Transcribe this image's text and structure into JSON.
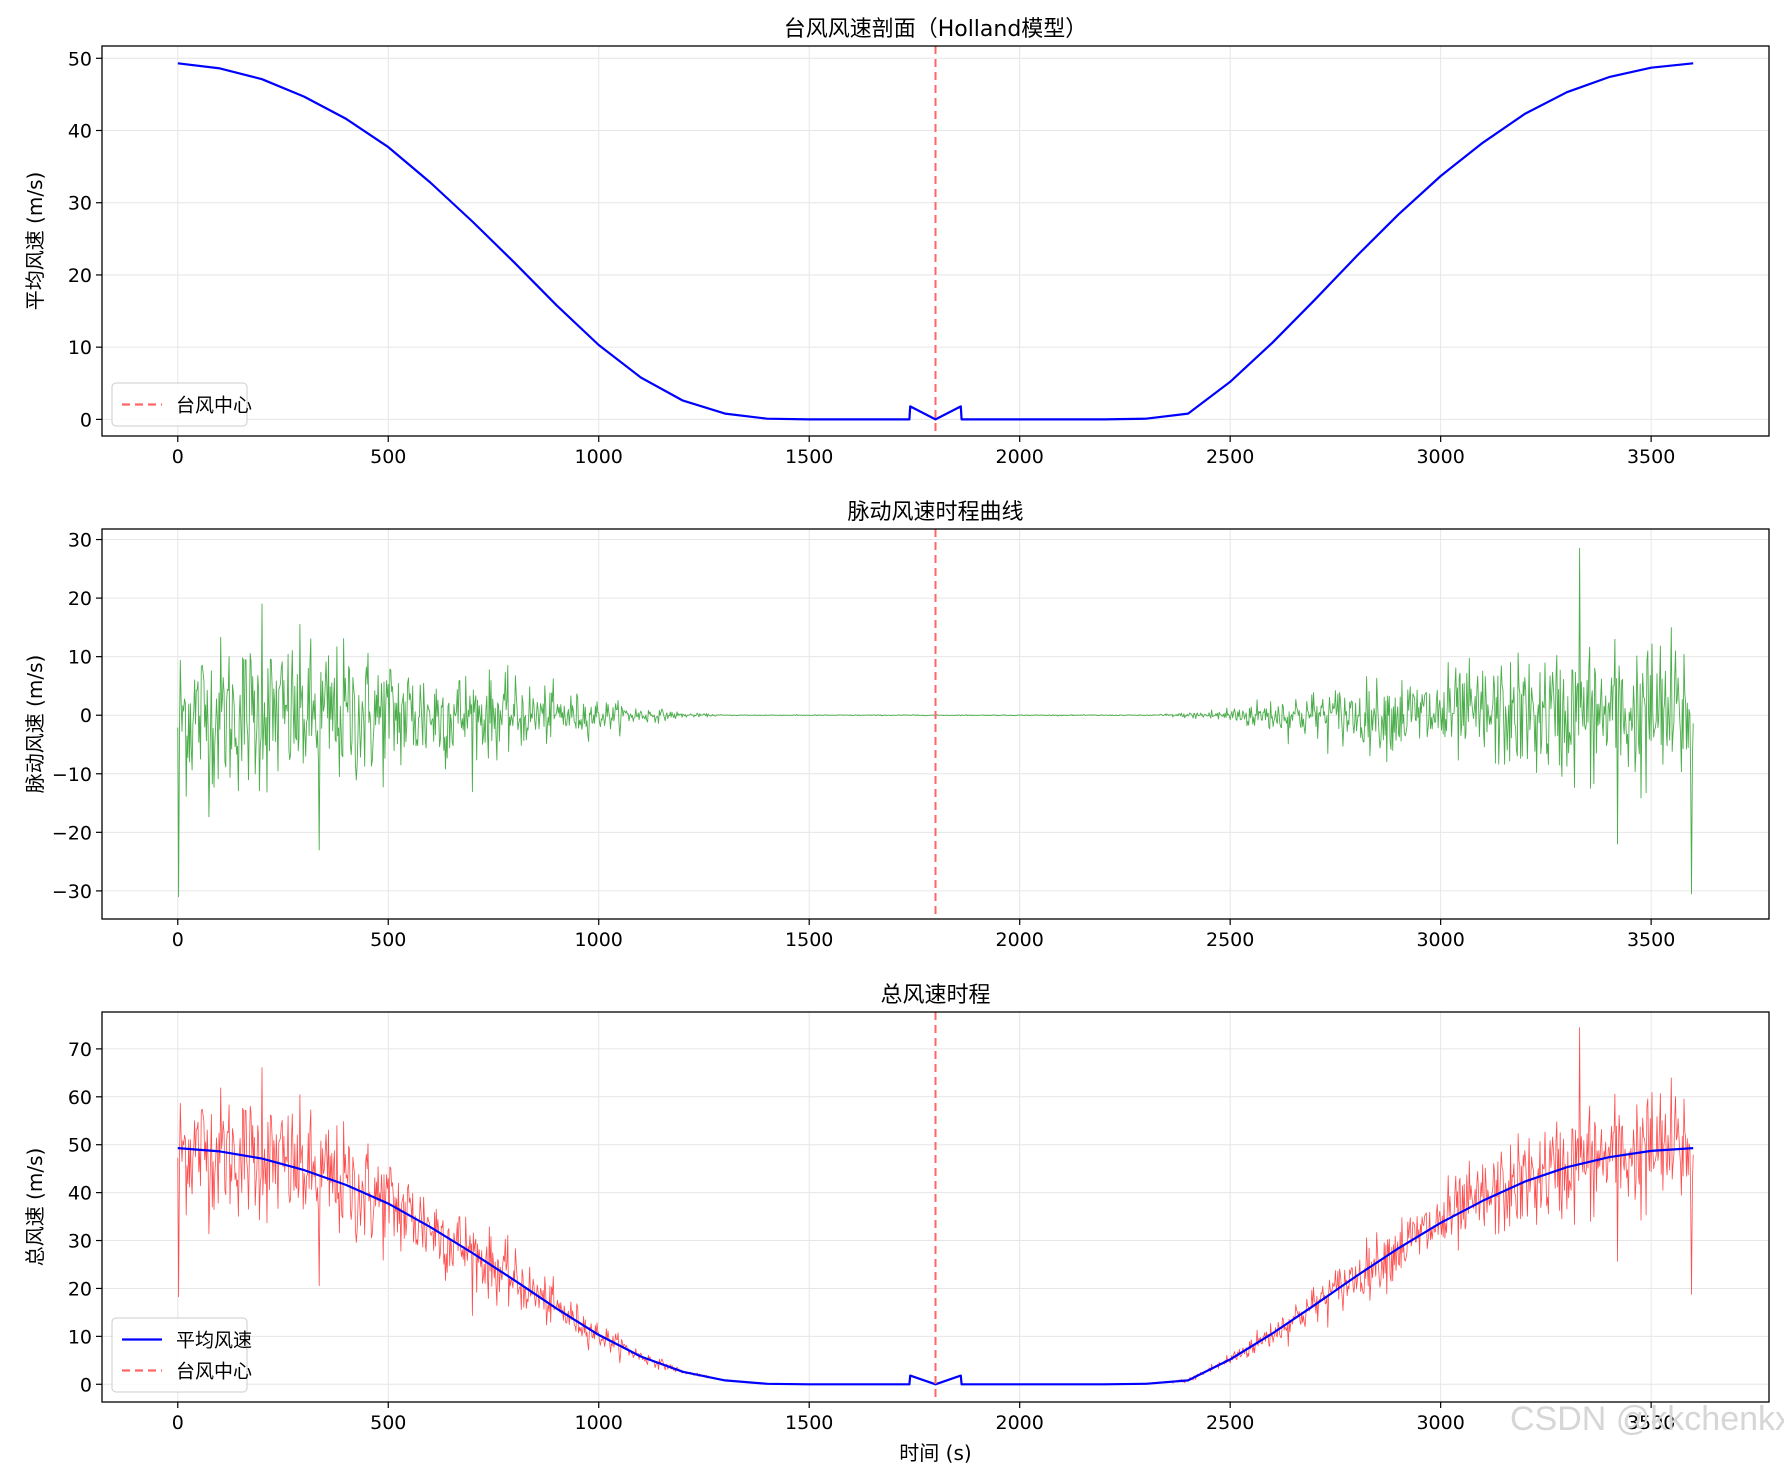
{
  "watermark": "CSDN @kkchenkx",
  "colors": {
    "smooth_line": "#0000ff",
    "noise_line": "#2ca02c",
    "noisy_line": "#ff0000",
    "center_line": "#ff6666",
    "grid": "#e6e6e6",
    "axes": "#000000"
  },
  "chart_data": [
    {
      "type": "line",
      "title": "台风风速剖面（Holland模型）",
      "xlabel": "",
      "ylabel": "平均风速 (m/s)",
      "xlim": [
        -180,
        3780
      ],
      "ylim": [
        -2.3,
        51.7
      ],
      "xticks": [
        0,
        500,
        1000,
        1500,
        2000,
        2500,
        3000,
        3500
      ],
      "yticks": [
        0,
        10,
        20,
        30,
        40,
        50
      ],
      "grid": true,
      "legend": {
        "placement": "lower left",
        "entries": [
          {
            "label": "台风中心",
            "style": "dashed",
            "color": "#ff6666"
          }
        ]
      },
      "center_line_x": 1800,
      "series": [
        {
          "role": "mean",
          "color": "#0000ff",
          "x": [
            0,
            100,
            200,
            300,
            400,
            500,
            600,
            700,
            800,
            900,
            1000,
            1100,
            1200,
            1300,
            1400,
            1500,
            1600,
            1700,
            1738,
            1740,
            1800,
            1860,
            1862,
            1900,
            2000,
            2100,
            2200,
            2300,
            2400,
            2500,
            2600,
            2700,
            2800,
            2900,
            3000,
            3100,
            3200,
            3300,
            3400,
            3500,
            3600
          ],
          "y": [
            49.3,
            48.6,
            47.1,
            44.7,
            41.6,
            37.7,
            32.8,
            27.4,
            21.7,
            15.8,
            10.3,
            5.8,
            2.6,
            0.8,
            0.1,
            0.0,
            0.0,
            0.0,
            0.0,
            1.8,
            0.0,
            1.8,
            0.0,
            0.0,
            0.0,
            0.0,
            0.0,
            0.1,
            0.8,
            5.2,
            10.6,
            16.5,
            22.6,
            28.4,
            33.7,
            38.3,
            42.3,
            45.3,
            47.4,
            48.7,
            49.3
          ]
        }
      ]
    },
    {
      "type": "line",
      "title": "脉动风速时程曲线",
      "xlabel": "",
      "ylabel": "脉动风速 (m/s)",
      "xlim": [
        -180,
        3780
      ],
      "ylim": [
        -34.8,
        31.8
      ],
      "xticks": [
        0,
        500,
        1000,
        1500,
        2000,
        2500,
        3000,
        3500
      ],
      "yticks": [
        -30,
        -20,
        -10,
        0,
        10,
        20,
        30
      ],
      "grid": true,
      "center_line_x": 1800,
      "series": [
        {
          "role": "noise",
          "color": "#2ca02c",
          "x": [
            0,
            3600
          ],
          "y": [
            0,
            0
          ],
          "sample_rate_s": 2,
          "envelope_std": {
            "x": [
              0,
              200,
              400,
              600,
              800,
              1000,
              1100,
              1200,
              1300,
              2300,
              2400,
              2500,
              2600,
              2800,
              3000,
              3200,
              3400,
              3600
            ],
            "y": [
              9,
              8.5,
              8,
              6,
              4,
              1.8,
              1.0,
              0.3,
              0.05,
              0.05,
              0.3,
              1.0,
              2,
              3.5,
              5,
              6.5,
              8,
              9
            ]
          },
          "peaks": [
            {
              "x": 2,
              "y": -31
            },
            {
              "x": 200,
              "y": 19
            },
            {
              "x": 335,
              "y": -23
            },
            {
              "x": 3330,
              "y": 28.5
            },
            {
              "x": 3595,
              "y": -30.5
            },
            {
              "x": 3420,
              "y": -22
            }
          ]
        }
      ]
    },
    {
      "type": "line",
      "title": "总风速时程",
      "xlabel": "时间 (s)",
      "ylabel": "总风速 (m/s)",
      "xlim": [
        -180,
        3780
      ],
      "ylim": [
        -3.7,
        77.7
      ],
      "xticks": [
        0,
        500,
        1000,
        1500,
        2000,
        2500,
        3000,
        3500
      ],
      "yticks": [
        0,
        10,
        20,
        30,
        40,
        50,
        60,
        70
      ],
      "grid": true,
      "legend": {
        "placement": "lower left",
        "entries": [
          {
            "label": "平均风速",
            "style": "solid",
            "color": "#0000ff"
          },
          {
            "label": "台风中心",
            "style": "dashed",
            "color": "#ff6666"
          }
        ]
      },
      "center_line_x": 1800,
      "series": [
        {
          "role": "total",
          "color": "#ff0000",
          "note_sum": "mean + noise"
        },
        {
          "role": "mean",
          "color": "#0000ff"
        }
      ]
    }
  ]
}
